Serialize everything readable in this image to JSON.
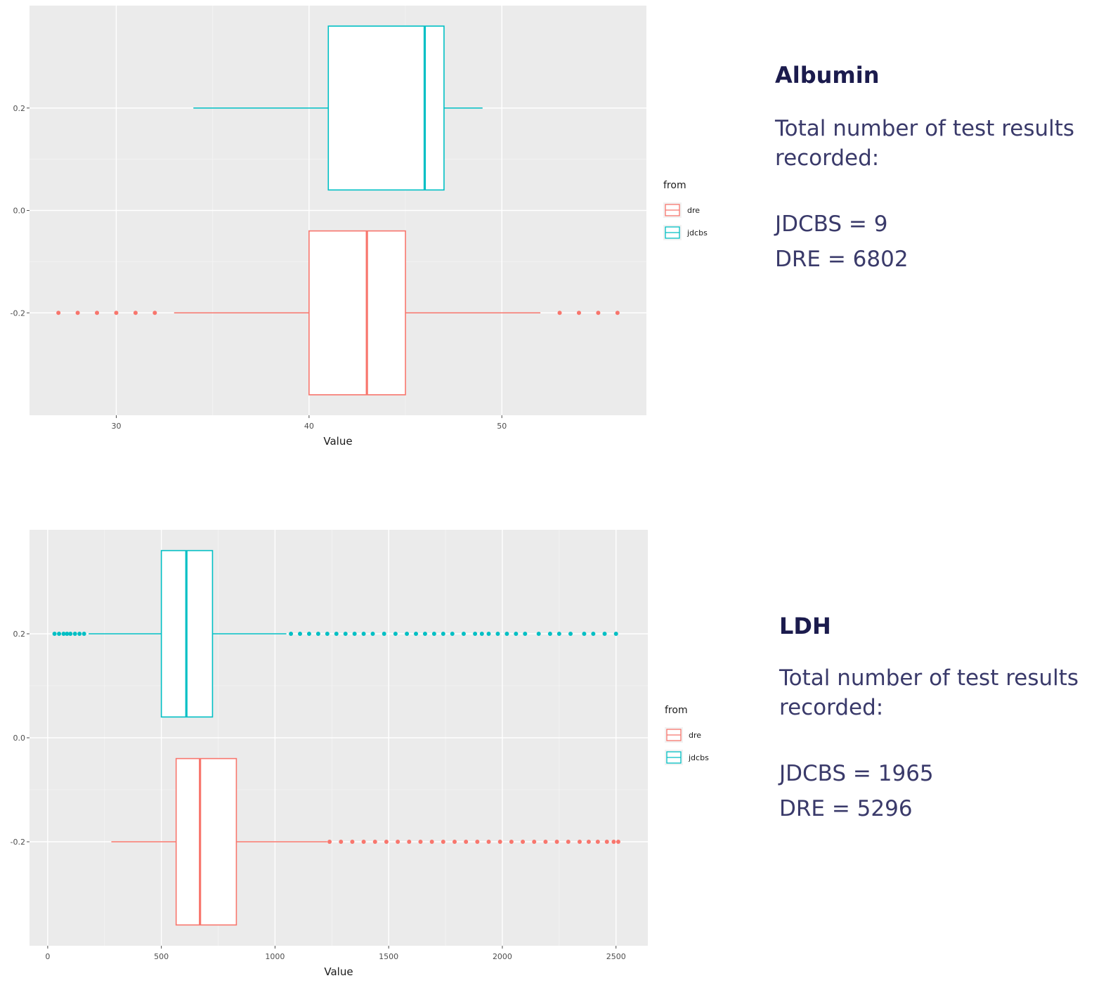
{
  "chart_data": [
    {
      "type": "boxplot",
      "title": "Albumin",
      "xlabel": "Value",
      "ylabel": "",
      "xlim": [
        25.5,
        57.5
      ],
      "xticks": [
        30,
        40,
        50
      ],
      "ylim": [
        -0.4,
        0.4
      ],
      "yticks": [
        0.2,
        0.0,
        -0.2
      ],
      "ytick_labels": [
        "0.2",
        "0.0",
        "-0.2"
      ],
      "grid": true,
      "legend": {
        "title": "from",
        "position": "right",
        "entries": [
          "dre",
          "jdcbs"
        ]
      },
      "series": [
        {
          "name": "jdcbs",
          "color": "#00bfc4",
          "center": 0.2,
          "whisker_low": 34,
          "q1": 41,
          "median": 46,
          "q3": 47,
          "whisker_high": 49,
          "outliers": []
        },
        {
          "name": "dre",
          "color": "#f8766d",
          "center": -0.2,
          "whisker_low": 33,
          "q1": 40,
          "median": 43,
          "q3": 45,
          "whisker_high": 52,
          "outliers": [
            27,
            28,
            29,
            30,
            31,
            32,
            53,
            54,
            55,
            56
          ]
        }
      ],
      "panel": {
        "heading": "Albumin",
        "description": "Total number of test results\nrecorded:",
        "counts": [
          "JDCBS = 9",
          "DRE = 6802"
        ]
      }
    },
    {
      "type": "boxplot",
      "title": "LDH",
      "xlabel": "Value",
      "ylabel": "",
      "xlim": [
        -80,
        2640
      ],
      "xticks": [
        0,
        500,
        1000,
        1500,
        2000,
        2500
      ],
      "ylim": [
        -0.4,
        0.4
      ],
      "yticks": [
        0.2,
        0.0,
        -0.2
      ],
      "ytick_labels": [
        "0.2",
        "0.0",
        "-0.2"
      ],
      "grid": true,
      "legend": {
        "title": "from",
        "position": "right",
        "entries": [
          "dre",
          "jdcbs"
        ]
      },
      "series": [
        {
          "name": "jdcbs",
          "color": "#00bfc4",
          "center": 0.2,
          "whisker_low": 180,
          "q1": 500,
          "median": 610,
          "q3": 725,
          "whisker_high": 1050,
          "outliers": [
            30,
            50,
            70,
            85,
            100,
            120,
            140,
            160,
            1070,
            1110,
            1150,
            1190,
            1230,
            1270,
            1310,
            1350,
            1390,
            1430,
            1480,
            1530,
            1580,
            1620,
            1660,
            1700,
            1740,
            1780,
            1830,
            1880,
            1910,
            1940,
            1980,
            2020,
            2060,
            2100,
            2160,
            2210,
            2250,
            2300,
            2360,
            2400,
            2450,
            2500
          ]
        },
        {
          "name": "dre",
          "color": "#f8766d",
          "center": -0.2,
          "whisker_low": 280,
          "q1": 565,
          "median": 670,
          "q3": 830,
          "whisker_high": 1230,
          "outliers": [
            1240,
            1290,
            1340,
            1390,
            1440,
            1490,
            1540,
            1590,
            1640,
            1690,
            1740,
            1790,
            1840,
            1890,
            1940,
            1990,
            2040,
            2090,
            2140,
            2190,
            2240,
            2290,
            2340,
            2380,
            2420,
            2460,
            2490,
            2510
          ]
        }
      ],
      "panel": {
        "heading": "LDH",
        "description": "Total number of test results\nrecorded:",
        "counts": [
          "JDCBS = 1965",
          "DRE = 5296"
        ]
      }
    }
  ]
}
